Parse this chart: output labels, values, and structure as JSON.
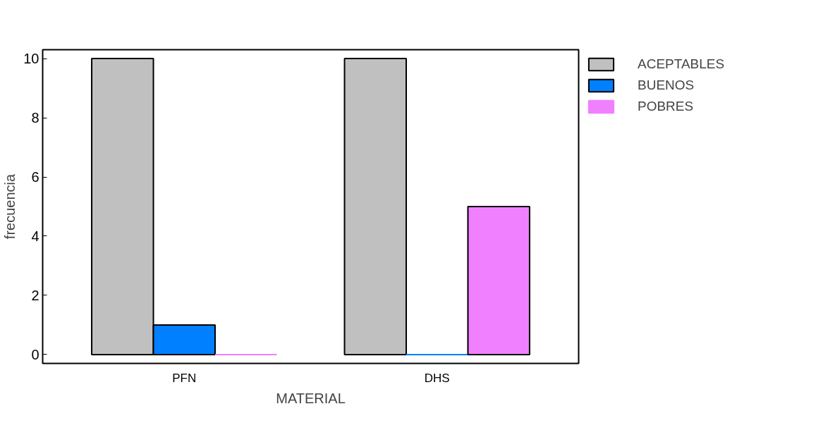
{
  "chart_data": {
    "type": "bar",
    "xlabel": "MATERIAL",
    "ylabel": "frecuencia",
    "categories": [
      "PFN",
      "DHS"
    ],
    "series": [
      {
        "name": "ACEPTABLES",
        "color": "#c0c0c0",
        "values": [
          10,
          10
        ]
      },
      {
        "name": "BUENOS",
        "color": "#0080ff",
        "values": [
          1,
          0
        ]
      },
      {
        "name": "POBRES",
        "color": "#f080ff",
        "values": [
          0,
          5
        ]
      }
    ],
    "ylim": [
      -0.3,
      10.3
    ],
    "yticks": [
      0,
      2,
      4,
      6,
      8,
      10
    ],
    "grid": false,
    "legend": "top right"
  }
}
